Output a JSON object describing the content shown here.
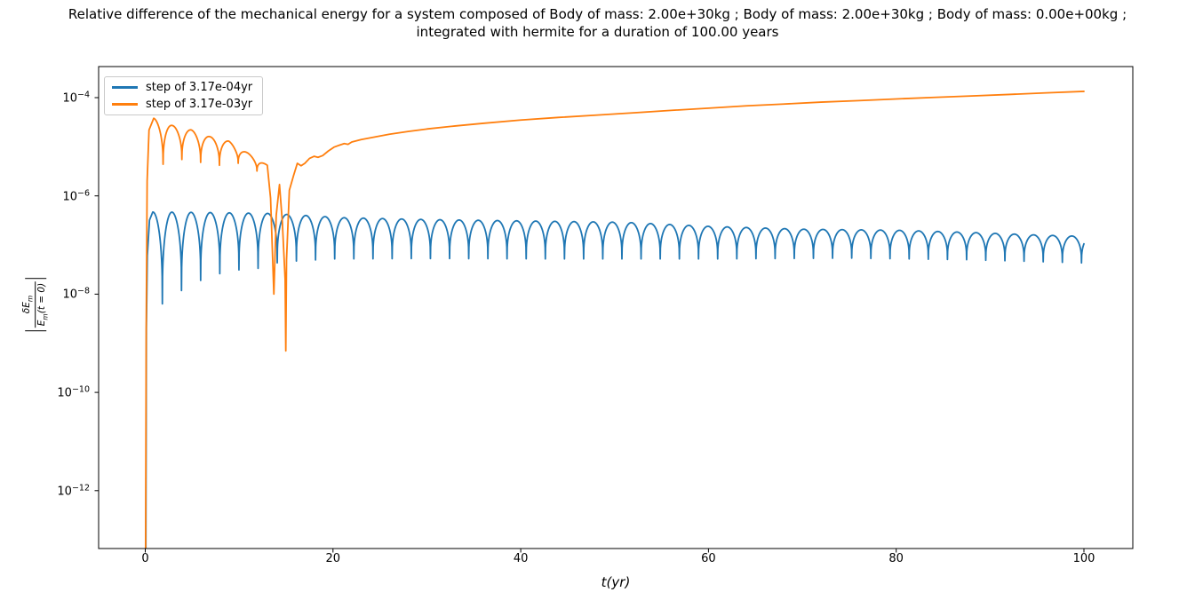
{
  "chart_data": {
    "type": "line",
    "title_line1": "Relative difference of the mechanical energy for a system composed of Body of mass: 2.00e+30kg ; Body of mass: 2.00e+30kg ; Body of mass: 0.00e+00kg ;",
    "title_line2": "integrated with hermite for a duration of 100.00 years",
    "xlabel": "t(yr)",
    "ylabel": {
      "num_main": "δE",
      "num_sub": "m",
      "den_main": "E",
      "den_sub": "m",
      "den_tail": "(t = 0)"
    },
    "x_axis": {
      "range": [
        -4.9,
        105.2
      ],
      "ticks": [
        {
          "label": "0",
          "value": 0
        },
        {
          "label": "20",
          "value": 20
        },
        {
          "label": "40",
          "value": 40
        },
        {
          "label": "60",
          "value": 60
        },
        {
          "label": "80",
          "value": 80
        },
        {
          "label": "100",
          "value": 100
        }
      ]
    },
    "y_axis": {
      "scale": "log",
      "tick_base": "10",
      "range_exp": [
        -13.18,
        -3.37
      ],
      "ticks": [
        {
          "exp_label": "−4",
          "exp": -4
        },
        {
          "exp_label": "−6",
          "exp": -6
        },
        {
          "exp_label": "−8",
          "exp": -8
        },
        {
          "exp_label": "−10",
          "exp": -10
        },
        {
          "exp_label": "−12",
          "exp": -12
        }
      ]
    },
    "legend": {
      "items": [
        {
          "label": "step of 3.17e-04yr",
          "color": "#1f77b4"
        },
        {
          "label": "step of 3.17e-03yr",
          "color": "#ff7f0e"
        }
      ]
    },
    "series": [
      {
        "name": "step of 3.17e-04yr",
        "color": "#1f77b4",
        "segments": [
          {
            "type": "points",
            "pts": [
              [
                0.06,
                3e-14
              ],
              [
                0.12,
                2e-09
              ],
              [
                0.22,
                6e-08
              ],
              [
                0.45,
                3.2e-07
              ],
              [
                0.8,
                4.7e-07
              ]
            ]
          },
          {
            "type": "osc",
            "t0": 0.8,
            "t1": 100.0,
            "period": 2.04,
            "peak_t0": 0.8,
            "sharpness": 0.35,
            "peaks": [
              [
                0.8,
                4.7e-07
              ],
              [
                6,
                4.6e-07
              ],
              [
                13,
                4.4e-07
              ],
              [
                17,
                4e-07
              ],
              [
                21,
                3.6e-07
              ],
              [
                30,
                3.3e-07
              ],
              [
                40,
                3.1e-07
              ],
              [
                51,
                2.9e-07
              ],
              [
                60,
                2.4e-07
              ],
              [
                70,
                2.1e-07
              ],
              [
                80,
                2e-07
              ],
              [
                88,
                1.8e-07
              ],
              [
                95,
                1.6e-07
              ],
              [
                100,
                1.5e-07
              ]
            ],
            "troughs": [
              [
                1.8,
                6.3e-09
              ],
              [
                3.9,
                1.2e-08
              ],
              [
                5.9,
                1.9e-08
              ],
              [
                7.9,
                2.6e-08
              ],
              [
                9.9,
                3.1e-08
              ],
              [
                11.9,
                3.3e-08
              ],
              [
                13.9,
                4.3e-08
              ],
              [
                16,
                4.7e-08
              ],
              [
                20,
                5.2e-08
              ],
              [
                30,
                5.3e-08
              ],
              [
                45,
                5.2e-08
              ],
              [
                60,
                5.2e-08
              ],
              [
                75,
                5.4e-08
              ],
              [
                88,
                5e-08
              ],
              [
                100,
                4.3e-08
              ]
            ]
          }
        ]
      },
      {
        "name": "step of 3.17e-03yr",
        "color": "#ff7f0e",
        "segments": [
          {
            "type": "points",
            "pts": [
              [
                0.03,
                3e-14
              ],
              [
                0.1,
                2e-09
              ],
              [
                0.2,
                2e-06
              ],
              [
                0.4,
                2.2e-05
              ],
              [
                0.9,
                3.8e-05
              ]
            ]
          },
          {
            "type": "osc",
            "t0": 0.9,
            "t1": 13.0,
            "period": 2.0,
            "peak_t0": 0.9,
            "sharpness": 0.4,
            "peaks": [
              [
                0.9,
                3.8e-05
              ],
              [
                2.9,
                2.7e-05
              ],
              [
                4.9,
                2.2e-05
              ],
              [
                6.9,
                1.6e-05
              ],
              [
                8.9,
                1.3e-05
              ],
              [
                10.9,
                7.5e-06
              ],
              [
                13.0,
                4.2e-06
              ]
            ],
            "troughs": [
              [
                1.9,
                4.4e-06
              ],
              [
                3.9,
                5.5e-06
              ],
              [
                5.9,
                4.8e-06
              ],
              [
                7.9,
                4.2e-06
              ],
              [
                9.9,
                4.6e-06
              ],
              [
                11.9,
                3.2e-06
              ]
            ]
          },
          {
            "type": "points",
            "pts": [
              [
                13.0,
                4.2e-06
              ],
              [
                13.35,
                9e-07
              ],
              [
                13.7,
                1e-08
              ],
              [
                13.95,
                4e-07
              ],
              [
                14.3,
                1.7e-06
              ],
              [
                14.6,
                3e-07
              ],
              [
                14.9,
                2e-08
              ],
              [
                14.97,
                7e-10
              ],
              [
                15.05,
                5e-08
              ],
              [
                15.35,
                1.3e-06
              ],
              [
                15.8,
                2.6e-06
              ],
              [
                16.2,
                4.6e-06
              ],
              [
                16.6,
                4.1e-06
              ],
              [
                17.0,
                4.6e-06
              ],
              [
                17.5,
                5.8e-06
              ],
              [
                18.0,
                6.4e-06
              ],
              [
                18.4,
                6.1e-06
              ],
              [
                18.9,
                6.6e-06
              ],
              [
                19.5,
                8.2e-06
              ],
              [
                20.1,
                9.8e-06
              ],
              [
                20.7,
                1.08e-05
              ],
              [
                21.2,
                1.16e-05
              ],
              [
                21.6,
                1.12e-05
              ],
              [
                22.0,
                1.25e-05
              ]
            ]
          },
          {
            "type": "points",
            "pts": [
              [
                23,
                1.4e-05
              ],
              [
                24,
                1.52e-05
              ],
              [
                26,
                1.8e-05
              ],
              [
                28,
                2.05e-05
              ],
              [
                30,
                2.3e-05
              ],
              [
                33,
                2.65e-05
              ],
              [
                36,
                3e-05
              ],
              [
                40,
                3.5e-05
              ],
              [
                44,
                3.95e-05
              ],
              [
                48,
                4.4e-05
              ],
              [
                52,
                4.9e-05
              ],
              [
                56,
                5.5e-05
              ],
              [
                60,
                6.1e-05
              ],
              [
                64,
                6.8e-05
              ],
              [
                68,
                7.4e-05
              ],
              [
                72,
                8.1e-05
              ],
              [
                76,
                8.7e-05
              ],
              [
                80,
                9.4e-05
              ],
              [
                84,
                0.000101
              ],
              [
                88,
                0.000108
              ],
              [
                92,
                0.000116
              ],
              [
                96,
                0.000125
              ],
              [
                100,
                0.000134
              ]
            ]
          }
        ]
      }
    ]
  }
}
